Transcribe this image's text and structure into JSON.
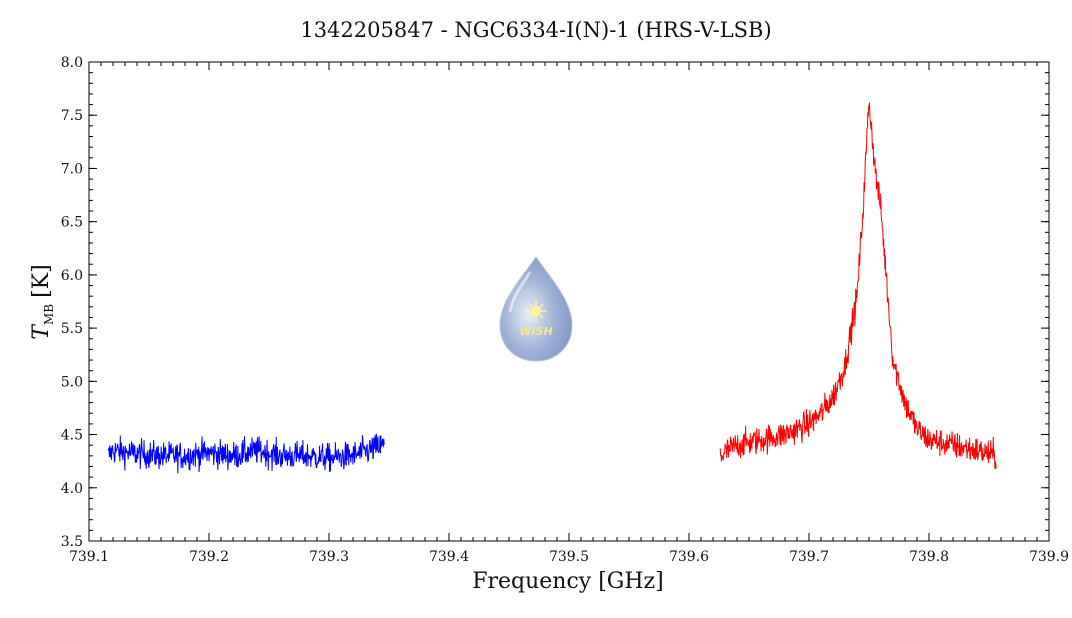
{
  "chart_data": {
    "type": "line",
    "title": "1342205847 - NGC6334-I(N)-1 (HRS-V-LSB)",
    "xlabel": "Frequency [GHz]",
    "ylabel_main": "T",
    "ylabel_sub": "MB",
    "ylabel_unit": "[K]",
    "xlim": [
      739.1,
      739.9
    ],
    "ylim": [
      3.5,
      8.0
    ],
    "x_ticks": [
      "739.1",
      "739.2",
      "739.3",
      "739.4",
      "739.5",
      "739.6",
      "739.7",
      "739.8",
      "739.9"
    ],
    "y_ticks": [
      "3.5",
      "4.0",
      "4.5",
      "5.0",
      "5.5",
      "6.0",
      "6.5",
      "7.0",
      "7.5",
      "8.0"
    ],
    "grid": false,
    "series": [
      {
        "color": "#0000ff",
        "x": [
          739.116,
          739.12,
          739.14,
          739.16,
          739.18,
          739.2,
          739.22,
          739.24,
          739.26,
          739.28,
          739.3,
          739.32,
          739.34,
          739.346
        ],
        "y": [
          4.3,
          4.35,
          4.32,
          4.3,
          4.3,
          4.33,
          4.3,
          4.35,
          4.3,
          4.3,
          4.28,
          4.3,
          4.38,
          4.4
        ]
      },
      {
        "color": "#ff0000",
        "x": [
          739.626,
          739.64,
          739.66,
          739.68,
          739.7,
          739.71,
          739.72,
          739.73,
          739.74,
          739.745,
          739.75,
          739.755,
          739.76,
          739.765,
          739.77,
          739.78,
          739.79,
          739.8,
          739.82,
          739.84,
          739.856
        ],
        "y": [
          4.3,
          4.4,
          4.45,
          4.5,
          4.6,
          4.7,
          4.85,
          5.15,
          5.8,
          6.6,
          7.65,
          7.0,
          6.6,
          5.9,
          5.2,
          4.8,
          4.55,
          4.45,
          4.4,
          4.35,
          4.3
        ]
      }
    ],
    "logo": {
      "text": "WISH",
      "icon": "wish-drop-logo"
    }
  }
}
